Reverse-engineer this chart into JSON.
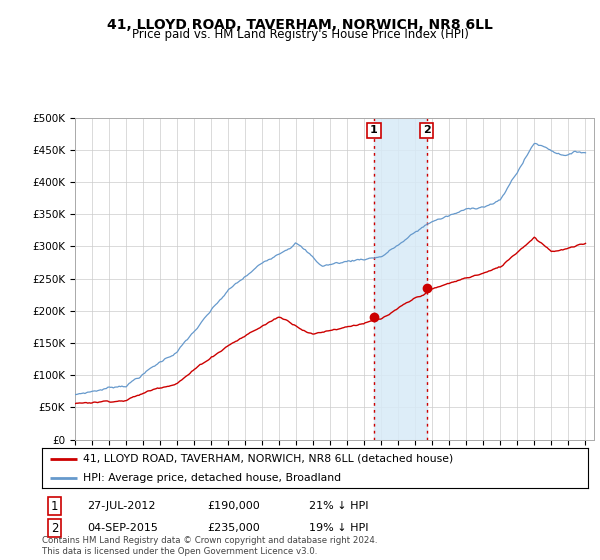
{
  "title": "41, LLOYD ROAD, TAVERHAM, NORWICH, NR8 6LL",
  "subtitle": "Price paid vs. HM Land Registry's House Price Index (HPI)",
  "ylim": [
    0,
    500000
  ],
  "yticks": [
    0,
    50000,
    100000,
    150000,
    200000,
    250000,
    300000,
    350000,
    400000,
    450000,
    500000
  ],
  "purchase1": {
    "date_label": "27-JUL-2012",
    "price": 190000,
    "hpi_diff": "21% ↓ HPI",
    "date_num": 2012.57
  },
  "purchase2": {
    "date_label": "04-SEP-2015",
    "price": 235000,
    "hpi_diff": "19% ↓ HPI",
    "date_num": 2015.67
  },
  "line1_label": "41, LLOYD ROAD, TAVERHAM, NORWICH, NR8 6LL (detached house)",
  "line2_label": "HPI: Average price, detached house, Broadland",
  "line1_color": "#cc0000",
  "line2_color": "#6699cc",
  "shade_color": "#d8eaf7",
  "grid_color": "#cccccc",
  "annotation_box_color": "#cc0000",
  "footnote": "Contains HM Land Registry data © Crown copyright and database right 2024.\nThis data is licensed under the Open Government Licence v3.0.",
  "background_color": "#ffffff",
  "xlim_left": 1995.0,
  "xlim_right": 2025.5
}
